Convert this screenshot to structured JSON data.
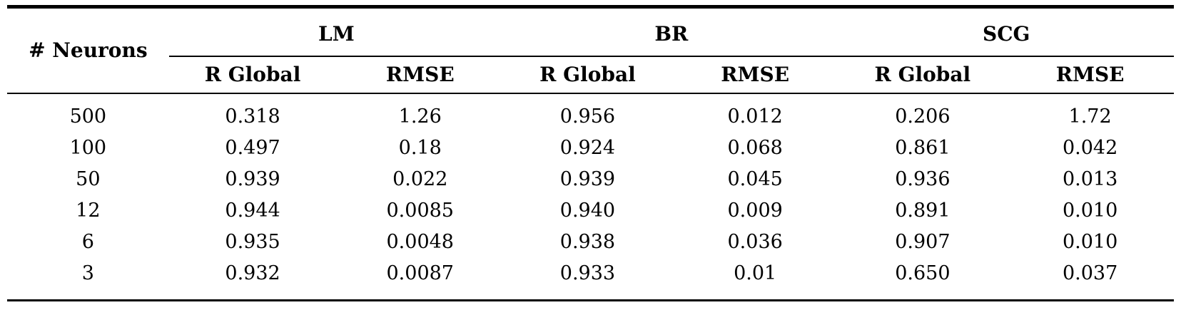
{
  "table": {
    "corner_header": "# Neurons",
    "group_headers": [
      "LM",
      "BR",
      "SCG"
    ],
    "sub_headers": [
      "R Global",
      "RMSE"
    ],
    "rows": [
      [
        "500",
        "0.318",
        "1.26",
        "0.956",
        "0.012",
        "0.206",
        "1.72"
      ],
      [
        "100",
        "0.497",
        "0.18",
        "0.924",
        "0.068",
        "0.861",
        "0.042"
      ],
      [
        "50",
        "0.939",
        "0.022",
        "0.939",
        "0.045",
        "0.936",
        "0.013"
      ],
      [
        "12",
        "0.944",
        "0.0085",
        "0.940",
        "0.009",
        "0.891",
        "0.010"
      ],
      [
        "6",
        "0.935",
        "0.0048",
        "0.938",
        "0.036",
        "0.907",
        "0.010"
      ],
      [
        "3",
        "0.932",
        "0.0087",
        "0.933",
        "0.01",
        "0.650",
        "0.037"
      ]
    ]
  },
  "colors": {
    "text": "#000000",
    "background": "#ffffff",
    "rule": "#000000"
  }
}
